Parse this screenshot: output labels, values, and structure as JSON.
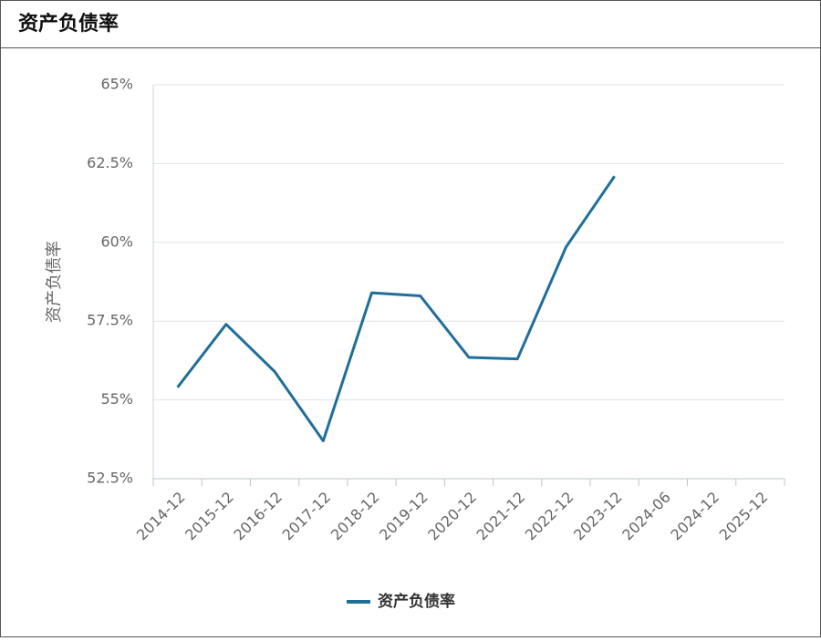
{
  "chart_data": {
    "type": "line",
    "title": "资产负债率",
    "y_label": "资产负债率",
    "categories": [
      "2014-12",
      "2015-12",
      "2016-12",
      "2017-12",
      "2018-12",
      "2019-12",
      "2020-12",
      "2021-12",
      "2022-12",
      "2023-12",
      "2024-06",
      "2024-12",
      "2025-12"
    ],
    "series": [
      {
        "name": "资产负债率",
        "color": "#1f6f9a",
        "values": [
          55.4,
          57.4,
          55.9,
          53.7,
          58.4,
          58.3,
          56.35,
          56.3,
          59.85,
          62.1,
          null,
          null,
          null
        ]
      }
    ],
    "ylim": [
      52.5,
      65
    ],
    "yticks": [
      {
        "value": 52.5,
        "label": "52.5%"
      },
      {
        "value": 55,
        "label": "55%"
      },
      {
        "value": 57.5,
        "label": "57.5%"
      },
      {
        "value": 60,
        "label": "60%"
      },
      {
        "value": 62.5,
        "label": "62.5%"
      },
      {
        "value": 65,
        "label": "65%"
      }
    ],
    "grid": true,
    "legend": "bottom"
  }
}
